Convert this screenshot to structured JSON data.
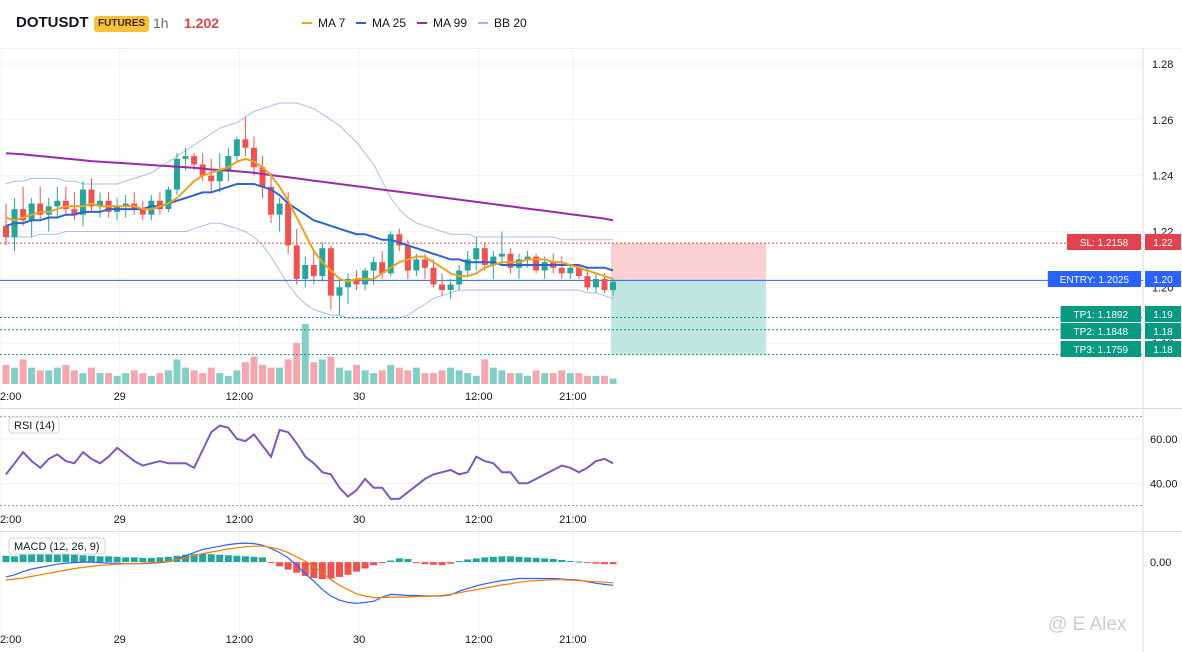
{
  "header": {
    "symbol": "DOTUSDT",
    "badge": "FUTURES",
    "interval": "1h",
    "price": "1.202",
    "legend": [
      {
        "label": "MA 7",
        "color": "#f0a020"
      },
      {
        "label": "MA 25",
        "color": "#2e63d6"
      },
      {
        "label": "MA 99",
        "color": "#9c27b0"
      },
      {
        "label": "BB 20",
        "color": "#9fb6e6"
      }
    ]
  },
  "watermark": "@ E Alex",
  "colors": {
    "up": "#26a69a",
    "down": "#ef5350",
    "volume_up": "#84cfc5",
    "volume_down": "#f5a6ae"
  },
  "chart_data": [
    {
      "type": "candlestick",
      "pane": "price",
      "x_tick_labels": [
        "2:00",
        "29",
        "12:00",
        "30",
        "12:00",
        "21:00"
      ],
      "y_ticks": [
        "1.28",
        "1.26",
        "1.24",
        "1.22",
        "1.20",
        "1.18"
      ],
      "ylim": [
        1.165,
        1.285
      ],
      "candles": [
        [
          1.222,
          1.23,
          1.215,
          1.218
        ],
        [
          1.218,
          1.232,
          1.213,
          1.228
        ],
        [
          1.228,
          1.236,
          1.222,
          1.224
        ],
        [
          1.224,
          1.232,
          1.218,
          1.23
        ],
        [
          1.23,
          1.236,
          1.224,
          1.226
        ],
        [
          1.226,
          1.232,
          1.22,
          1.229
        ],
        [
          1.229,
          1.236,
          1.225,
          1.231
        ],
        [
          1.231,
          1.236,
          1.226,
          1.228
        ],
        [
          1.228,
          1.234,
          1.224,
          1.226
        ],
        [
          1.226,
          1.238,
          1.222,
          1.235
        ],
        [
          1.235,
          1.239,
          1.227,
          1.229
        ],
        [
          1.229,
          1.234,
          1.225,
          1.231
        ],
        [
          1.231,
          1.234,
          1.225,
          1.227
        ],
        [
          1.227,
          1.232,
          1.224,
          1.229
        ],
        [
          1.229,
          1.233,
          1.225,
          1.23
        ],
        [
          1.23,
          1.234,
          1.226,
          1.228
        ],
        [
          1.228,
          1.231,
          1.224,
          1.226
        ],
        [
          1.226,
          1.233,
          1.224,
          1.231
        ],
        [
          1.231,
          1.234,
          1.226,
          1.228
        ],
        [
          1.228,
          1.236,
          1.227,
          1.235
        ],
        [
          1.235,
          1.248,
          1.233,
          1.246
        ],
        [
          1.246,
          1.25,
          1.242,
          1.247
        ],
        [
          1.247,
          1.248,
          1.242,
          1.244
        ],
        [
          1.244,
          1.248,
          1.238,
          1.24
        ],
        [
          1.24,
          1.246,
          1.234,
          1.238
        ],
        [
          1.238,
          1.248,
          1.234,
          1.242
        ],
        [
          1.242,
          1.25,
          1.238,
          1.247
        ],
        [
          1.247,
          1.254,
          1.245,
          1.253
        ],
        [
          1.253,
          1.261,
          1.247,
          1.25
        ],
        [
          1.25,
          1.254,
          1.24,
          1.243
        ],
        [
          1.243,
          1.247,
          1.232,
          1.236
        ],
        [
          1.236,
          1.241,
          1.223,
          1.226
        ],
        [
          1.226,
          1.232,
          1.22,
          1.23
        ],
        [
          1.23,
          1.234,
          1.212,
          1.215
        ],
        [
          1.215,
          1.221,
          1.201,
          1.203
        ],
        [
          1.203,
          1.211,
          1.2,
          1.208
        ],
        [
          1.208,
          1.213,
          1.201,
          1.204
        ],
        [
          1.204,
          1.216,
          1.202,
          1.214
        ],
        [
          1.214,
          1.215,
          1.192,
          1.197
        ],
        [
          1.197,
          1.203,
          1.19,
          1.2
        ],
        [
          1.2,
          1.205,
          1.194,
          1.203
        ],
        [
          1.203,
          1.206,
          1.199,
          1.201
        ],
        [
          1.201,
          1.207,
          1.199,
          1.206
        ],
        [
          1.206,
          1.211,
          1.201,
          1.209
        ],
        [
          1.209,
          1.213,
          1.203,
          1.205
        ],
        [
          1.205,
          1.22,
          1.204,
          1.219
        ],
        [
          1.219,
          1.221,
          1.213,
          1.215
        ],
        [
          1.215,
          1.217,
          1.203,
          1.206
        ],
        [
          1.206,
          1.212,
          1.204,
          1.21
        ],
        [
          1.21,
          1.212,
          1.203,
          1.207
        ],
        [
          1.207,
          1.21,
          1.2,
          1.201
        ],
        [
          1.201,
          1.205,
          1.197,
          1.199
        ],
        [
          1.199,
          1.203,
          1.196,
          1.201
        ],
        [
          1.201,
          1.208,
          1.199,
          1.206
        ],
        [
          1.206,
          1.213,
          1.204,
          1.21
        ],
        [
          1.21,
          1.218,
          1.206,
          1.214
        ],
        [
          1.214,
          1.216,
          1.206,
          1.208
        ],
        [
          1.208,
          1.213,
          1.203,
          1.211
        ],
        [
          1.211,
          1.22,
          1.209,
          1.212
        ],
        [
          1.212,
          1.214,
          1.205,
          1.207
        ],
        [
          1.207,
          1.212,
          1.203,
          1.21
        ],
        [
          1.21,
          1.213,
          1.207,
          1.211
        ],
        [
          1.211,
          1.212,
          1.205,
          1.206
        ],
        [
          1.206,
          1.211,
          1.203,
          1.209
        ],
        [
          1.209,
          1.212,
          1.205,
          1.207
        ],
        [
          1.207,
          1.211,
          1.203,
          1.205
        ],
        [
          1.205,
          1.208,
          1.203,
          1.207
        ],
        [
          1.207,
          1.208,
          1.203,
          1.204
        ],
        [
          1.204,
          1.207,
          1.199,
          1.2
        ],
        [
          1.2,
          1.205,
          1.198,
          1.203
        ],
        [
          1.203,
          1.205,
          1.198,
          1.199
        ],
        [
          1.199,
          1.203,
          1.197,
          1.202
        ]
      ],
      "ma7": [
        1.225,
        1.224,
        1.225,
        1.226,
        1.227,
        1.227,
        1.228,
        1.229,
        1.229,
        1.229,
        1.23,
        1.229,
        1.229,
        1.229,
        1.229,
        1.229,
        1.228,
        1.228,
        1.229,
        1.23,
        1.232,
        1.235,
        1.238,
        1.24,
        1.241,
        1.242,
        1.243,
        1.245,
        1.246,
        1.245,
        1.243,
        1.24,
        1.236,
        1.231,
        1.225,
        1.219,
        1.213,
        1.209,
        1.206,
        1.203,
        1.202,
        1.203,
        1.203,
        1.203,
        1.205,
        1.207,
        1.209,
        1.21,
        1.211,
        1.211,
        1.209,
        1.207,
        1.205,
        1.204,
        1.204,
        1.205,
        1.207,
        1.208,
        1.209,
        1.209,
        1.209,
        1.21,
        1.21,
        1.21,
        1.209,
        1.209,
        1.208,
        1.207,
        1.206,
        1.205,
        1.204,
        1.203
      ],
      "ma25": [
        1.222,
        1.223,
        1.223,
        1.224,
        1.224,
        1.225,
        1.225,
        1.226,
        1.226,
        1.227,
        1.227,
        1.227,
        1.228,
        1.228,
        1.228,
        1.228,
        1.228,
        1.229,
        1.229,
        1.23,
        1.231,
        1.232,
        1.233,
        1.234,
        1.234,
        1.235,
        1.236,
        1.237,
        1.237,
        1.237,
        1.236,
        1.235,
        1.233,
        1.23,
        1.228,
        1.226,
        1.224,
        1.223,
        1.222,
        1.221,
        1.22,
        1.219,
        1.219,
        1.218,
        1.217,
        1.217,
        1.216,
        1.215,
        1.214,
        1.213,
        1.212,
        1.211,
        1.21,
        1.21,
        1.209,
        1.209,
        1.209,
        1.209,
        1.208,
        1.208,
        1.208,
        1.208,
        1.208,
        1.208,
        1.208,
        1.208,
        1.208,
        1.208,
        1.207,
        1.207,
        1.207,
        1.206
      ],
      "ma99": [
        1.248,
        1.2478,
        1.2476,
        1.2473,
        1.247,
        1.2467,
        1.2464,
        1.2461,
        1.2458,
        1.2455,
        1.2452,
        1.245,
        1.2448,
        1.2446,
        1.2444,
        1.2442,
        1.244,
        1.2438,
        1.2436,
        1.2434,
        1.2432,
        1.243,
        1.2428,
        1.2425,
        1.2422,
        1.242,
        1.2418,
        1.2416,
        1.2413,
        1.241,
        1.2406,
        1.2402,
        1.2398,
        1.2394,
        1.239,
        1.2386,
        1.2382,
        1.2378,
        1.2374,
        1.237,
        1.2366,
        1.2362,
        1.2358,
        1.2354,
        1.235,
        1.2346,
        1.2342,
        1.2338,
        1.2334,
        1.233,
        1.2326,
        1.2322,
        1.2318,
        1.2314,
        1.231,
        1.2306,
        1.2302,
        1.2298,
        1.2294,
        1.229,
        1.2286,
        1.2282,
        1.2278,
        1.2274,
        1.227,
        1.2266,
        1.2262,
        1.2258,
        1.2254,
        1.225,
        1.2246,
        1.224
      ],
      "bb_upper": [
        1.237,
        1.238,
        1.238,
        1.239,
        1.239,
        1.239,
        1.239,
        1.238,
        1.238,
        1.237,
        1.237,
        1.237,
        1.237,
        1.237,
        1.238,
        1.239,
        1.24,
        1.241,
        1.243,
        1.245,
        1.247,
        1.249,
        1.251,
        1.253,
        1.255,
        1.257,
        1.258,
        1.259,
        1.261,
        1.263,
        1.264,
        1.265,
        1.266,
        1.266,
        1.266,
        1.265,
        1.264,
        1.262,
        1.26,
        1.258,
        1.255,
        1.252,
        1.248,
        1.244,
        1.238,
        1.232,
        1.228,
        1.225,
        1.223,
        1.222,
        1.221,
        1.22,
        1.219,
        1.219,
        1.219,
        1.218,
        1.218,
        1.218,
        1.218,
        1.218,
        1.218,
        1.218,
        1.218,
        1.218,
        1.218,
        1.217,
        1.217,
        1.217,
        1.217,
        1.217,
        1.217,
        1.217
      ],
      "bb_lower": [
        1.218,
        1.218,
        1.218,
        1.218,
        1.219,
        1.219,
        1.219,
        1.22,
        1.22,
        1.22,
        1.22,
        1.22,
        1.22,
        1.22,
        1.22,
        1.22,
        1.22,
        1.22,
        1.22,
        1.22,
        1.22,
        1.22,
        1.221,
        1.222,
        1.223,
        1.223,
        1.222,
        1.221,
        1.22,
        1.218,
        1.215,
        1.211,
        1.206,
        1.201,
        1.197,
        1.194,
        1.192,
        1.191,
        1.19,
        1.19,
        1.189,
        1.189,
        1.189,
        1.189,
        1.189,
        1.189,
        1.189,
        1.19,
        1.192,
        1.194,
        1.196,
        1.197,
        1.198,
        1.199,
        1.199,
        1.199,
        1.199,
        1.199,
        1.199,
        1.199,
        1.199,
        1.199,
        1.199,
        1.199,
        1.199,
        1.199,
        1.199,
        1.199,
        1.198,
        1.198,
        1.197,
        1.196
      ],
      "volume": [
        7,
        6,
        9,
        6,
        5,
        5,
        6,
        7,
        5,
        4,
        6,
        4,
        4,
        3,
        4,
        5,
        4,
        3,
        4,
        5,
        9,
        6,
        5,
        4,
        6,
        4,
        3,
        5,
        8,
        10,
        7,
        6,
        6,
        9,
        15,
        22,
        8,
        9,
        10,
        6,
        5,
        7,
        5,
        4,
        5,
        7,
        6,
        5,
        6,
        4,
        4,
        5,
        6,
        5,
        4,
        3,
        9,
        6,
        5,
        4,
        4,
        3,
        5,
        4,
        4,
        5,
        4,
        4,
        3,
        3,
        3,
        2
      ],
      "levels": [
        {
          "label": "SL: 1.2158",
          "axis": "1.22",
          "value": 1.2158,
          "color": "#e2424f"
        },
        {
          "label": "ENTRY: 1.2025",
          "axis": "1.20",
          "value": 1.2025,
          "color": "#2962ff"
        },
        {
          "label": "TP1: 1.1892",
          "axis": "1.19",
          "value": 1.1892,
          "color": "#089981"
        },
        {
          "label": "TP2: 1.1848",
          "axis": "1.18",
          "value": 1.1848,
          "color": "#089981"
        },
        {
          "label": "TP3: 1.1759",
          "axis": "1.18",
          "value": 1.1759,
          "color": "#089981"
        }
      ]
    },
    {
      "type": "line",
      "pane": "rsi",
      "title": "RSI (14)",
      "x_tick_labels": [
        "2:00",
        "29",
        "12:00",
        "30",
        "12:00",
        "21:00"
      ],
      "y_ticks": [
        "60.00",
        "40.00"
      ],
      "ylim": [
        28,
        73
      ],
      "bands": [
        70,
        30
      ],
      "values": [
        44,
        49,
        54,
        50,
        47,
        51,
        53,
        50,
        49,
        54,
        51,
        49,
        52,
        56,
        53,
        50,
        48,
        49,
        50,
        49,
        49,
        49,
        47,
        55,
        63,
        66,
        65,
        60,
        59,
        62,
        57,
        52,
        64,
        63,
        58,
        52,
        49,
        45,
        44,
        38,
        34,
        37,
        42,
        38,
        38,
        33,
        33,
        36,
        39,
        42,
        44,
        45,
        46,
        44,
        45,
        52,
        50,
        49,
        45,
        45,
        40,
        40,
        42,
        44,
        46,
        48,
        47,
        45,
        47,
        50,
        51,
        49
      ]
    },
    {
      "type": "bar+line",
      "pane": "macd",
      "title": "MACD (12, 26, 9)",
      "x_tick_labels": [
        "2:00",
        "29",
        "12:00",
        "30",
        "12:00",
        "21:00"
      ],
      "y_ticks": [
        "0.00"
      ],
      "ylim": [
        -0.0115,
        0.0055
      ],
      "histogram": [
        0.0012,
        0.0011,
        0.0014,
        0.0015,
        0.0016,
        0.0015,
        0.0014,
        0.0015,
        0.0014,
        0.0013,
        0.0012,
        0.0011,
        0.0011,
        0.001,
        0.0009,
        0.0009,
        0.0008,
        0.0008,
        0.0009,
        0.001,
        0.0012,
        0.0014,
        0.0015,
        0.0016,
        0.0015,
        0.0014,
        0.0013,
        0.0012,
        0.0011,
        0.001,
        0.0009,
        -0.0002,
        -0.0008,
        -0.0014,
        -0.002,
        -0.0026,
        -0.003,
        -0.0032,
        -0.0031,
        -0.0028,
        -0.0024,
        -0.0018,
        -0.0012,
        -0.0006,
        -0.0002,
        0.0003,
        0.0007,
        0.0006,
        -0.0002,
        -0.0004,
        -0.0005,
        -0.0006,
        -0.0003,
        0.0002,
        0.0005,
        0.0007,
        0.0009,
        0.001,
        0.0011,
        0.0011,
        0.001,
        0.0009,
        0.0008,
        0.0007,
        0.0006,
        0.0004,
        0.0002,
        0.0001,
        -0.0001,
        -0.0003,
        -0.0004,
        -0.0004
      ],
      "macd": [
        -0.0028,
        -0.0024,
        -0.0018,
        -0.0013,
        -0.001,
        -0.0007,
        -0.0004,
        -0.0002,
        -0.0001,
        0.0,
        0.0,
        -0.0001,
        -0.0002,
        -0.0002,
        -0.0003,
        -0.0003,
        -0.0003,
        -0.0002,
        -0.0001,
        0.0001,
        0.0006,
        0.0012,
        0.0018,
        0.0024,
        0.0027,
        0.003,
        0.0033,
        0.0035,
        0.0036,
        0.0035,
        0.0032,
        0.0026,
        0.0018,
        0.0008,
        -0.0006,
        -0.0022,
        -0.0036,
        -0.0052,
        -0.0064,
        -0.0072,
        -0.0076,
        -0.0078,
        -0.0076,
        -0.0074,
        -0.0066,
        -0.0061,
        -0.0062,
        -0.0063,
        -0.0063,
        -0.0064,
        -0.0064,
        -0.0064,
        -0.0062,
        -0.0055,
        -0.005,
        -0.0045,
        -0.0041,
        -0.0038,
        -0.0035,
        -0.0033,
        -0.0031,
        -0.0031,
        -0.0031,
        -0.0031,
        -0.0031,
        -0.0032,
        -0.0033,
        -0.0034,
        -0.0037,
        -0.004,
        -0.0042,
        -0.0044
      ],
      "signal": [
        -0.0034,
        -0.0032,
        -0.003,
        -0.0027,
        -0.0024,
        -0.0021,
        -0.0018,
        -0.0015,
        -0.0012,
        -0.001,
        -0.0008,
        -0.0006,
        -0.0005,
        -0.0004,
        -0.0003,
        -0.0003,
        -0.0002,
        -0.0001,
        0.0,
        0.0002,
        0.0005,
        0.0008,
        0.0012,
        0.0016,
        0.0019,
        0.0022,
        0.0025,
        0.0027,
        0.0029,
        0.003,
        0.003,
        0.0028,
        0.0024,
        0.0018,
        0.001,
        0.0002,
        -0.0008,
        -0.002,
        -0.0033,
        -0.0044,
        -0.0052,
        -0.006,
        -0.0064,
        -0.0067,
        -0.0067,
        -0.0066,
        -0.0066,
        -0.0066,
        -0.0065,
        -0.0065,
        -0.0064,
        -0.0063,
        -0.0061,
        -0.0058,
        -0.0055,
        -0.0052,
        -0.0049,
        -0.0046,
        -0.0043,
        -0.0041,
        -0.0038,
        -0.0036,
        -0.0035,
        -0.0034,
        -0.0033,
        -0.0033,
        -0.0034,
        -0.0035,
        -0.0036,
        -0.0037,
        -0.0038,
        -0.0039
      ]
    }
  ]
}
